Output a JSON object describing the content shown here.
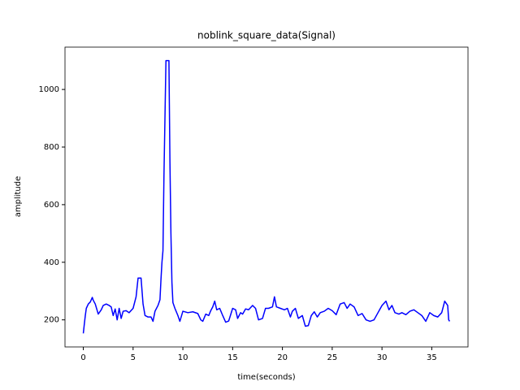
{
  "chart_data": {
    "type": "line",
    "title": "noblink_square_data(Signal)",
    "x_label": "time(seconds)",
    "y_label": "amplitude",
    "xlim": [
      -1.84,
      38.64
    ],
    "ylim": [
      106,
      1147
    ],
    "xticks": [
      0,
      5,
      10,
      15,
      20,
      25,
      30,
      35
    ],
    "yticks": [
      200,
      400,
      600,
      800,
      1000
    ],
    "series": [
      {
        "name": "Signal",
        "color": "#0000ff",
        "x": [
          0,
          0.1,
          0.2,
          0.3,
          0.5,
          0.7,
          0.8,
          0.9,
          1.0,
          1.2,
          1.5,
          1.8,
          2.0,
          2.3,
          2.6,
          2.8,
          3.0,
          3.2,
          3.4,
          3.6,
          3.8,
          4.0,
          4.3,
          4.6,
          5.0,
          5.3,
          5.5,
          5.8,
          6.0,
          6.2,
          6.5,
          6.8,
          7.0,
          7.2,
          7.5,
          7.7,
          7.8,
          7.9,
          8.0,
          8.1,
          8.2,
          8.3,
          8.5,
          8.6,
          8.7,
          8.8,
          8.9,
          9.0,
          9.2,
          9.5,
          9.7,
          10.0,
          10.5,
          11.0,
          11.5,
          11.8,
          12.0,
          12.3,
          12.6,
          12.8,
          13.0,
          13.2,
          13.4,
          13.7,
          14.0,
          14.3,
          14.6,
          15.0,
          15.3,
          15.5,
          15.8,
          16.0,
          16.3,
          16.6,
          17.0,
          17.3,
          17.6,
          18.0,
          18.3,
          18.6,
          19.0,
          19.2,
          19.4,
          19.8,
          20.2,
          20.5,
          20.8,
          21.0,
          21.3,
          21.6,
          22.0,
          22.3,
          22.6,
          22.9,
          23.2,
          23.5,
          23.8,
          24.2,
          24.6,
          25.0,
          25.4,
          25.8,
          26.2,
          26.5,
          26.8,
          27.2,
          27.6,
          28.0,
          28.4,
          28.8,
          29.2,
          29.6,
          30.0,
          30.4,
          30.7,
          31.0,
          31.3,
          31.7,
          32.0,
          32.4,
          32.8,
          33.2,
          33.6,
          34.0,
          34.4,
          34.8,
          35.2,
          35.6,
          36.0,
          36.3,
          36.6,
          36.7,
          36.8
        ],
        "values": [
          153,
          185,
          215,
          240,
          255,
          262,
          270,
          278,
          268,
          255,
          220,
          235,
          250,
          255,
          250,
          245,
          215,
          238,
          200,
          240,
          205,
          230,
          232,
          225,
          240,
          280,
          345,
          345,
          255,
          215,
          210,
          210,
          195,
          230,
          250,
          270,
          340,
          400,
          440,
          700,
          900,
          1100,
          1100,
          1100,
          750,
          500,
          330,
          260,
          240,
          215,
          195,
          230,
          225,
          228,
          222,
          200,
          195,
          220,
          215,
          232,
          245,
          265,
          235,
          240,
          215,
          192,
          196,
          240,
          235,
          205,
          225,
          220,
          238,
          235,
          250,
          240,
          200,
          205,
          240,
          240,
          245,
          280,
          245,
          240,
          235,
          240,
          210,
          230,
          240,
          205,
          215,
          178,
          180,
          215,
          228,
          210,
          225,
          230,
          240,
          232,
          218,
          255,
          260,
          240,
          255,
          245,
          215,
          222,
          200,
          195,
          200,
          225,
          250,
          265,
          235,
          250,
          225,
          220,
          225,
          218,
          230,
          235,
          225,
          215,
          195,
          225,
          215,
          210,
          225,
          265,
          250,
          200,
          195
        ]
      }
    ]
  }
}
